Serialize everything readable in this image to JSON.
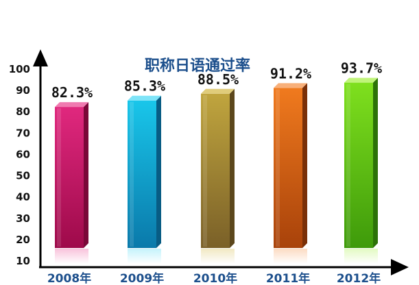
{
  "chart_data": {
    "type": "bar",
    "title": "职称日语通过率",
    "categories": [
      "2008年",
      "2009年",
      "2010年",
      "2011年",
      "2012年"
    ],
    "values": [
      82.3,
      85.3,
      88.5,
      91.2,
      93.7
    ],
    "data_labels": [
      "82.3%",
      "85.3%",
      "88.5%",
      "91.2%",
      "93.7%"
    ],
    "y_ticks": [
      "10",
      "20",
      "30",
      "40",
      "50",
      "60",
      "70",
      "80",
      "90",
      "100"
    ],
    "ylim": [
      10,
      100
    ],
    "xlabel": "",
    "ylabel": "",
    "grid": false,
    "bar_colors": [
      {
        "front_top": "#e0287e",
        "front_bottom": "#9e0a4a",
        "side": "#7a0838",
        "top": "#f07ab0"
      },
      {
        "front_top": "#19c6ea",
        "front_bottom": "#0a79aa",
        "side": "#085c84",
        "top": "#7ee4f8"
      },
      {
        "front_top": "#c0a53e",
        "front_bottom": "#7a6028",
        "side": "#5c471c",
        "top": "#e0cc7a"
      },
      {
        "front_top": "#f07a1e",
        "front_bottom": "#a8420a",
        "side": "#7a3008",
        "top": "#f8b07a"
      },
      {
        "front_top": "#7fe01e",
        "front_bottom": "#3e9a0a",
        "side": "#2c7208",
        "top": "#c0f47a"
      }
    ]
  }
}
